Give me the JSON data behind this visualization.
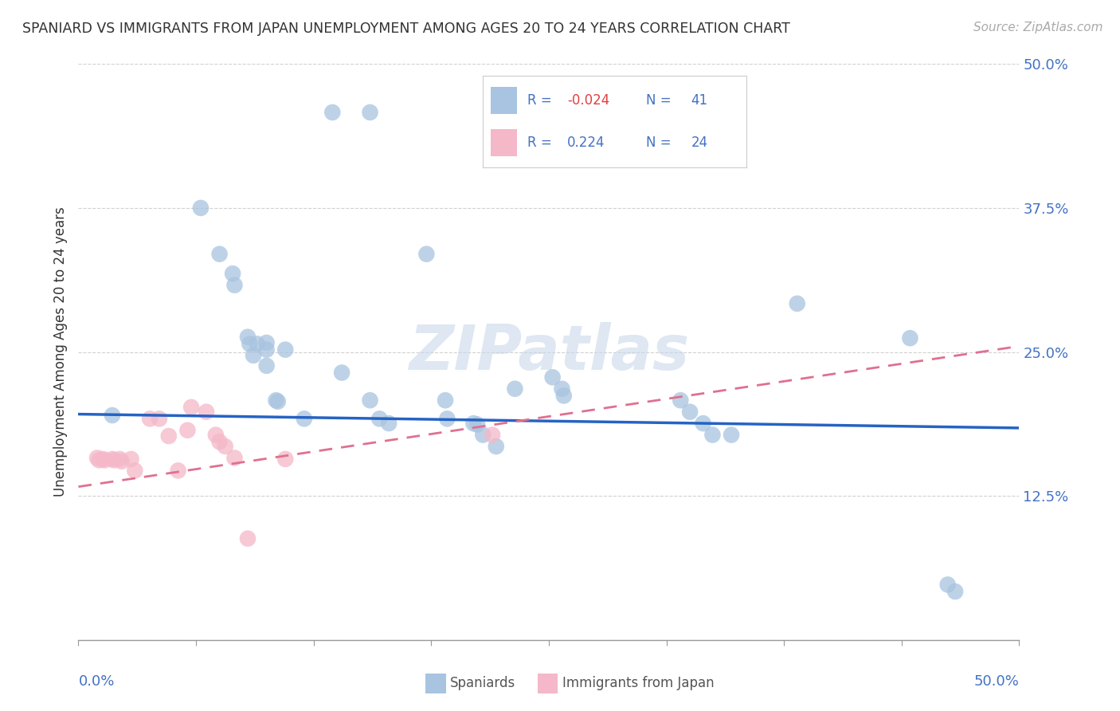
{
  "title": "SPANIARD VS IMMIGRANTS FROM JAPAN UNEMPLOYMENT AMONG AGES 20 TO 24 YEARS CORRELATION CHART",
  "source": "Source: ZipAtlas.com",
  "ylabel": "Unemployment Among Ages 20 to 24 years",
  "xlim": [
    0.0,
    0.5
  ],
  "ylim": [
    0.0,
    0.5
  ],
  "xticks": [
    0.0,
    0.0625,
    0.125,
    0.1875,
    0.25,
    0.3125,
    0.375,
    0.4375,
    0.5
  ],
  "yticks": [
    0.0,
    0.125,
    0.25,
    0.375,
    0.5
  ],
  "xticklabels_show": [
    "0.0%",
    "50.0%"
  ],
  "yticklabels": [
    "",
    "12.5%",
    "25.0%",
    "37.5%",
    "50.0%"
  ],
  "watermark": "ZIPatlas",
  "spaniard_color": "#a8c4e0",
  "japan_color": "#f4b8c8",
  "line_spaniard_color": "#2563c4",
  "line_japan_color": "#e07090",
  "spaniard_points": [
    [
      0.018,
      0.195
    ],
    [
      0.065,
      0.375
    ],
    [
      0.075,
      0.335
    ],
    [
      0.082,
      0.318
    ],
    [
      0.083,
      0.308
    ],
    [
      0.09,
      0.263
    ],
    [
      0.091,
      0.257
    ],
    [
      0.095,
      0.257
    ],
    [
      0.093,
      0.247
    ],
    [
      0.1,
      0.258
    ],
    [
      0.1,
      0.252
    ],
    [
      0.1,
      0.238
    ],
    [
      0.11,
      0.252
    ],
    [
      0.105,
      0.208
    ],
    [
      0.106,
      0.207
    ],
    [
      0.12,
      0.192
    ],
    [
      0.14,
      0.232
    ],
    [
      0.155,
      0.208
    ],
    [
      0.16,
      0.192
    ],
    [
      0.165,
      0.188
    ],
    [
      0.195,
      0.208
    ],
    [
      0.196,
      0.192
    ],
    [
      0.21,
      0.188
    ],
    [
      0.212,
      0.187
    ],
    [
      0.215,
      0.178
    ],
    [
      0.222,
      0.168
    ],
    [
      0.135,
      0.458
    ],
    [
      0.155,
      0.458
    ],
    [
      0.185,
      0.335
    ],
    [
      0.232,
      0.218
    ],
    [
      0.252,
      0.228
    ],
    [
      0.257,
      0.218
    ],
    [
      0.258,
      0.212
    ],
    [
      0.32,
      0.208
    ],
    [
      0.325,
      0.198
    ],
    [
      0.332,
      0.188
    ],
    [
      0.337,
      0.178
    ],
    [
      0.347,
      0.178
    ],
    [
      0.382,
      0.292
    ],
    [
      0.442,
      0.262
    ],
    [
      0.462,
      0.048
    ],
    [
      0.466,
      0.042
    ]
  ],
  "japan_points": [
    [
      0.01,
      0.158
    ],
    [
      0.011,
      0.156
    ],
    [
      0.013,
      0.157
    ],
    [
      0.014,
      0.156
    ],
    [
      0.018,
      0.157
    ],
    [
      0.019,
      0.156
    ],
    [
      0.022,
      0.157
    ],
    [
      0.023,
      0.155
    ],
    [
      0.028,
      0.157
    ],
    [
      0.03,
      0.147
    ],
    [
      0.038,
      0.192
    ],
    [
      0.043,
      0.192
    ],
    [
      0.048,
      0.177
    ],
    [
      0.053,
      0.147
    ],
    [
      0.058,
      0.182
    ],
    [
      0.06,
      0.202
    ],
    [
      0.068,
      0.198
    ],
    [
      0.073,
      0.178
    ],
    [
      0.075,
      0.172
    ],
    [
      0.078,
      0.168
    ],
    [
      0.083,
      0.158
    ],
    [
      0.09,
      0.088
    ],
    [
      0.11,
      0.157
    ],
    [
      0.22,
      0.178
    ]
  ],
  "spaniard_line": {
    "x0": 0.0,
    "x1": 0.5,
    "y0": 0.196,
    "y1": 0.184
  },
  "japan_line": {
    "x0": 0.0,
    "x1": 0.5,
    "y0": 0.133,
    "y1": 0.255
  }
}
